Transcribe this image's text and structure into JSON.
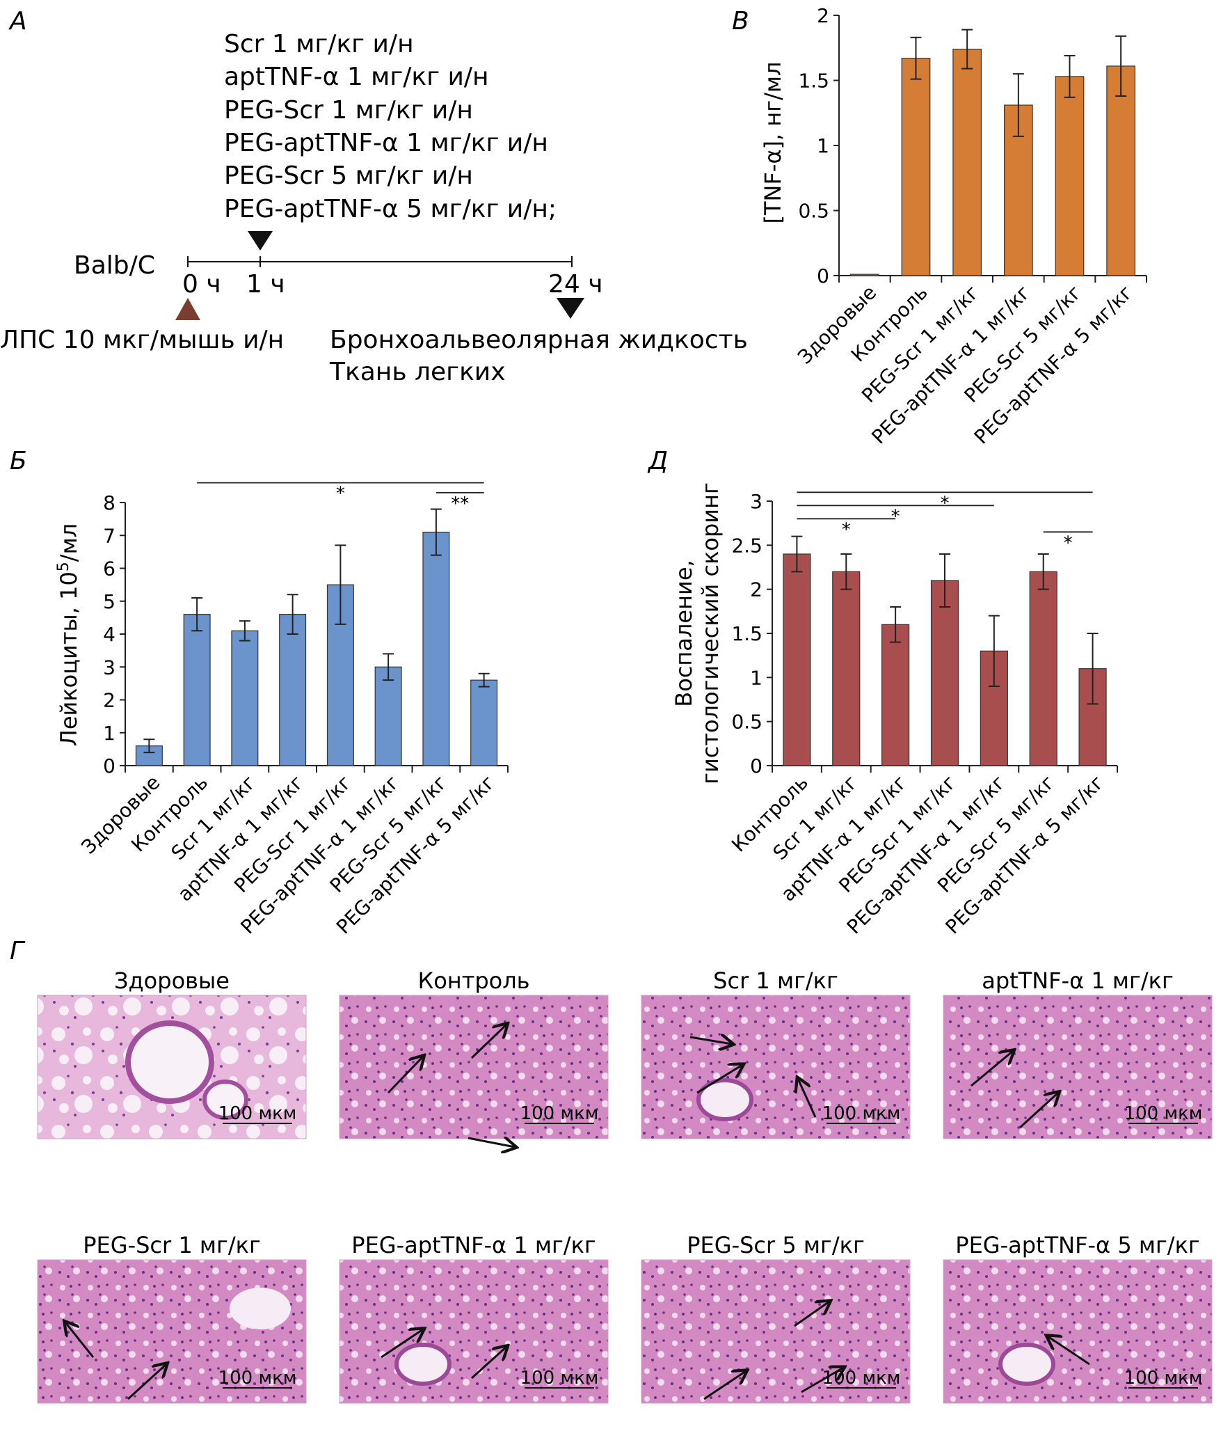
{
  "panel_letters": {
    "a": "А",
    "b": "Б",
    "v": "В",
    "g": "Г",
    "d": "Д"
  },
  "schema": {
    "treatments": [
      "Scr 1 мг/кг и/н",
      "aptTNF-α 1 мг/кг и/н",
      "PEG-Scr 1 мг/кг и/н",
      "PEG-aptTNF-α 1 мг/кг и/н",
      "PEG-Scr 5 мг/кг и/н",
      "PEG-aptTNF-α 5 мг/кг и/н;"
    ],
    "strain": "Balb/C",
    "t0": "0 ч",
    "t1": "1 ч",
    "t24": "24 ч",
    "lps": "ЛПС 10 мкг/мышь и/н",
    "sample1": "Бронхоальвеолярная жидкость",
    "sample2": "Ткань легких"
  },
  "chart_data": [
    {
      "id": "B",
      "type": "bar",
      "ylabel": "Лейкоциты, 10⁵/мл",
      "ylim": [
        0,
        8
      ],
      "yticks": [
        "0",
        "1",
        "2",
        "3",
        "4",
        "5",
        "6",
        "7",
        "8"
      ],
      "categories": [
        "Здоровые",
        "Контроль",
        "Scr 1 мг/кг",
        "aptTNF-α 1 мг/кг",
        "PEG-Scr 1 мг/кг",
        "PEG-aptTNF-α 1 мг/кг",
        "PEG-Scr 5 мг/кг",
        "PEG-aptTNF-α 5 мг/кг"
      ],
      "values": [
        0.6,
        4.6,
        4.1,
        4.6,
        5.5,
        3.0,
        7.1,
        2.6
      ],
      "errors": [
        0.2,
        0.5,
        0.3,
        0.6,
        1.2,
        0.4,
        0.7,
        0.2
      ],
      "color": "#6b93cc",
      "significance": [
        {
          "from": 1,
          "to": 7,
          "y": 8.6,
          "label": "*"
        },
        {
          "from": 6,
          "to": 7,
          "y": 8.3,
          "label": "**"
        }
      ]
    },
    {
      "id": "V",
      "type": "bar",
      "ylabel": "[TNF-α], нг/мл",
      "ylim": [
        0,
        2
      ],
      "yticks": [
        "0",
        "0.5",
        "1",
        "1.5",
        "2"
      ],
      "categories": [
        "Здоровые",
        "Контроль",
        "PEG-Scr 1 мг/кг",
        "PEG-aptTNF-α 1 мг/кг",
        "PEG-Scr 5 мг/кг",
        "PEG-aptTNF-α 5 мг/кг"
      ],
      "values": [
        0.01,
        1.67,
        1.74,
        1.31,
        1.53,
        1.61
      ],
      "errors": [
        0.0,
        0.16,
        0.15,
        0.24,
        0.16,
        0.23
      ],
      "color": "#d67d35",
      "significance": []
    },
    {
      "id": "D",
      "type": "bar",
      "ylabel": [
        "Воспаление,",
        "гистологический скоринг"
      ],
      "ylim": [
        0,
        3
      ],
      "yticks": [
        "0",
        "0.5",
        "1",
        "1.5",
        "2",
        "2.5",
        "3"
      ],
      "categories": [
        "Контроль",
        "Scr 1 мг/кг",
        "aptTNF-α 1 мг/кг",
        "PEG-Scr 1 мг/кг",
        "PEG-aptTNF-α 1 мг/кг",
        "PEG-Scr 5 мг/кг",
        "PEG-aptTNF-α 5 мг/кг"
      ],
      "values": [
        2.4,
        2.2,
        1.6,
        2.1,
        1.3,
        2.2,
        1.1
      ],
      "errors": [
        0.2,
        0.2,
        0.2,
        0.3,
        0.4,
        0.2,
        0.4
      ],
      "color": "#a84e4e",
      "significance": [
        {
          "from": 0,
          "to": 6,
          "y": 3.1,
          "label": "*"
        },
        {
          "from": 0,
          "to": 4,
          "y": 2.95,
          "label": "*"
        },
        {
          "from": 0,
          "to": 2,
          "y": 2.8,
          "label": "*"
        },
        {
          "from": 5,
          "to": 6,
          "y": 2.65,
          "label": "*"
        }
      ]
    }
  ],
  "histology": [
    {
      "title": "Здоровые",
      "scale": "100 мкм",
      "arrows": 0
    },
    {
      "title": "Контроль",
      "scale": "100 мкм",
      "arrows": 3
    },
    {
      "title": "Scr 1 мг/кг",
      "scale": "100 мкм",
      "arrows": 3
    },
    {
      "title": "aptTNF-α 1 мг/кг",
      "scale": "100 мкм",
      "arrows": 2
    },
    {
      "title": "PEG-Scr 1 мг/кг",
      "scale": "100 мкм",
      "arrows": 2
    },
    {
      "title": "PEG-aptTNF-α 1 мг/кг",
      "scale": "100 мкм",
      "arrows": 2
    },
    {
      "title": "PEG-Scr 5 мг/кг",
      "scale": "100 мкм",
      "arrows": 3
    },
    {
      "title": "PEG-aptTNF-α 5 мг/кг",
      "scale": "100 мкм",
      "arrows": 1
    }
  ]
}
